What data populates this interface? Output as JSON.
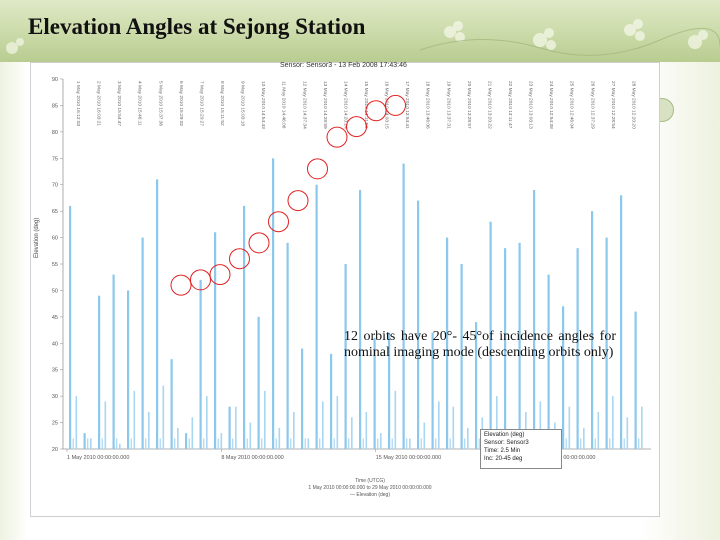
{
  "slide": {
    "title": "Elevation Angles at Sejong Station",
    "annotation": "12 orbits have 20°- 45°of incidence angles for nominal imaging mode (descending orbits only)",
    "colors": {
      "header": "#c9d9a6",
      "bars": "#8cc8ec",
      "circles": "#e02020"
    },
    "icons": [
      "flower-decoration-icon",
      "seal-badge-icon"
    ]
  },
  "chart_data": {
    "type": "bar",
    "title": "Sensor: Sensor3 - 13 Feb 2008 17:43:46",
    "ylabel": "Elevation (deg)",
    "ylim": [
      20,
      90
    ],
    "yticks": [
      90,
      85,
      80,
      75,
      70,
      65,
      60,
      55,
      50,
      45,
      40,
      35,
      30,
      25,
      20
    ],
    "x_tick_labels": [
      "1 May 2010 00:00:00.000",
      "8 May 2010 00:00:00.000",
      "15 May 2010 00:00:00.000",
      "22 May 2010 00:00:00.000"
    ],
    "x_caption_lines": [
      "Time (UTCG)",
      "1 May 2010 00:00:00.000 to 29 May 2010 00:00:00.000",
      "— Elevation (deg)"
    ],
    "legend_lines": [
      "Elevation (deg)",
      "Sensor: Sensor3",
      "Time: 2.5 Min",
      "Inc: 20-45 deg"
    ],
    "series": [
      {
        "name": "Elevation (deg)",
        "major_peaks": [
          66,
          23,
          49,
          53,
          50,
          60,
          71,
          37,
          23,
          52,
          61,
          28,
          66,
          45,
          75,
          59,
          39,
          70,
          38,
          55,
          69,
          41,
          42,
          74,
          67,
          42,
          60,
          55,
          44,
          63,
          58,
          59,
          69,
          53,
          47,
          58,
          65,
          60,
          68,
          46
        ],
        "secondary_peaks": [
          30,
          22,
          29,
          21,
          31,
          27,
          32,
          24,
          26,
          30,
          23,
          28,
          25,
          31,
          24,
          27,
          22,
          29,
          30,
          26,
          27,
          23,
          31,
          22,
          25,
          29,
          28,
          24,
          26,
          30,
          23,
          27,
          29,
          25,
          28,
          24,
          27,
          30,
          26,
          28
        ]
      }
    ],
    "highlighted_passes": [
      {
        "elevation": 51
      },
      {
        "elevation": 52
      },
      {
        "elevation": 53
      },
      {
        "elevation": 56
      },
      {
        "elevation": 59
      },
      {
        "elevation": 63
      },
      {
        "elevation": 67
      },
      {
        "elevation": 73
      },
      {
        "elevation": 79
      },
      {
        "elevation": 81
      },
      {
        "elevation": 84
      },
      {
        "elevation": 85
      }
    ],
    "pass_timestamps": [
      "1 May 2010 16:12:03",
      "2 May 2010 16:03:21",
      "3 May 2010 15:54:47",
      "4 May 2010 15:46:11",
      "5 May 2010 15:37:36",
      "6 May 2010 15:29:02",
      "7 May 2010 15:20:27",
      "8 May 2010 15:11:52",
      "9 May 2010 15:03:18",
      "10 May 2010 14:54:43",
      "11 May 2010 14:46:08",
      "12 May 2010 14:37:34",
      "13 May 2010 14:28:59",
      "14 May 2010 14:20:24",
      "15 May 2010 14:11:50",
      "16 May 2010 14:03:15",
      "17 May 2010 13:54:41",
      "18 May 2010 13:46:06",
      "19 May 2010 13:37:31",
      "20 May 2010 13:28:57",
      "21 May 2010 13:20:22",
      "22 May 2010 13:11:47",
      "23 May 2010 13:03:13",
      "24 May 2010 12:54:38",
      "25 May 2010 12:46:04",
      "26 May 2010 12:37:29",
      "27 May 2010 12:28:54",
      "28 May 2010 12:20:20"
    ],
    "grid": false
  }
}
